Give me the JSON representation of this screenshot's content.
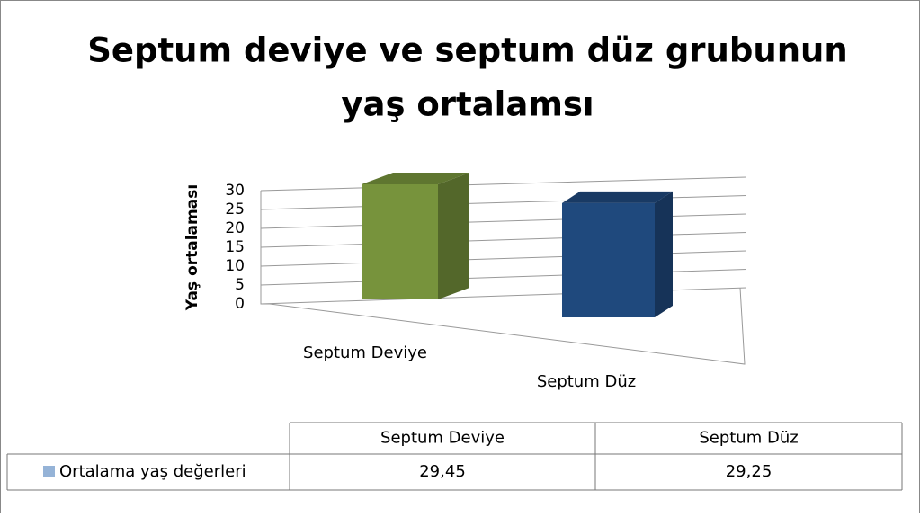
{
  "chart_data": {
    "type": "bar3d",
    "title": "Septum deviye ve septum düz grubunun yaş ortalamsı",
    "ylabel": "Yaş ortalaması",
    "categories": [
      "Septum Deviye",
      "Septum Düz"
    ],
    "series": [
      {
        "name": "Ortalama yaş değerleri",
        "color": "#95b3d7",
        "values": [
          29.45,
          29.25
        ],
        "value_labels": [
          "29,45",
          "29,25"
        ]
      }
    ],
    "bar_colors": [
      "#77933c",
      "#1f497d"
    ],
    "ylim": [
      0,
      30
    ],
    "yticks": [
      0,
      5,
      10,
      15,
      20,
      25,
      30
    ],
    "grid": true,
    "data_table": true
  }
}
